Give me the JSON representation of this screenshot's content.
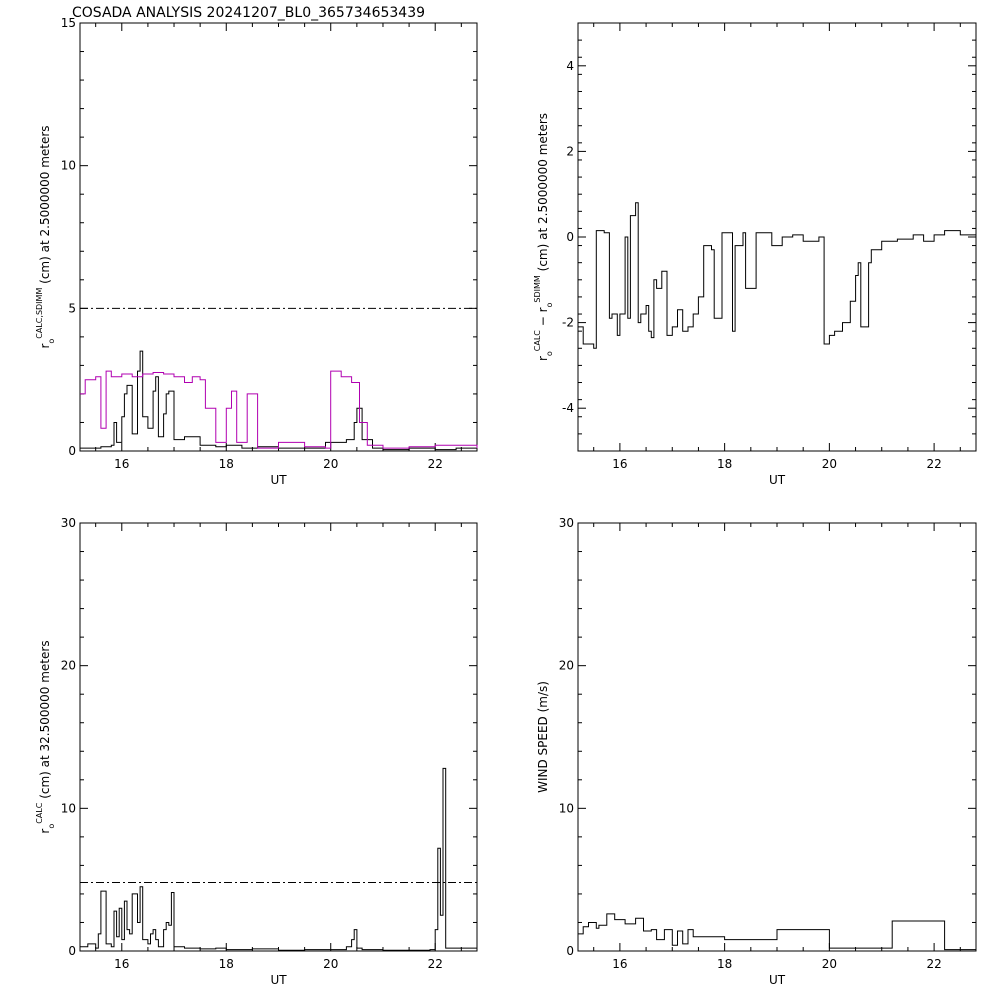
{
  "title": "COSADA ANALYSIS 20241207_BL0_365734653439",
  "colors": {
    "primary": "#000000",
    "sdimm": "#b000b0"
  },
  "chart_data": [
    {
      "type": "line",
      "xlabel": "UT",
      "ylabel": "r₀ CALC,SDIMM (cm) at 2.5000000 meters",
      "ylabel_parts": {
        "base": "r",
        "sup": "CALC,SDIMM",
        "sub": "o",
        "rest": "(cm)  at  2.5000000 meters"
      },
      "xlim": [
        15.2,
        22.8
      ],
      "ylim": [
        0,
        15
      ],
      "xticks": [
        16,
        18,
        20,
        22
      ],
      "yticks": [
        0,
        5,
        10,
        15
      ],
      "reference_lines": [
        5
      ],
      "series": [
        {
          "color": "#000000",
          "x": [
            15.2,
            15.4,
            15.6,
            15.8,
            15.85,
            15.9,
            16.0,
            16.05,
            16.1,
            16.2,
            16.3,
            16.35,
            16.4,
            16.5,
            16.6,
            16.65,
            16.7,
            16.8,
            16.85,
            16.9,
            17.0,
            17.2,
            17.5,
            17.8,
            18.0,
            18.3,
            18.6,
            19.0,
            19.5,
            19.9,
            20.1,
            20.3,
            20.45,
            20.5,
            20.6,
            20.8,
            21.0,
            21.5,
            22.0,
            22.4,
            22.8
          ],
          "y": [
            0.1,
            0.1,
            0.15,
            0.2,
            1.0,
            0.3,
            1.2,
            2.0,
            2.3,
            0.6,
            2.8,
            3.5,
            1.2,
            0.8,
            2.1,
            2.6,
            0.5,
            1.3,
            2.0,
            2.1,
            0.4,
            0.5,
            0.2,
            0.15,
            0.2,
            0.1,
            0.15,
            0.1,
            0.1,
            0.3,
            0.3,
            0.4,
            1.0,
            1.5,
            0.4,
            0.1,
            0.05,
            0.1,
            0.05,
            0.1,
            0.05
          ]
        },
        {
          "color": "#b000b0",
          "x": [
            15.2,
            15.3,
            15.5,
            15.6,
            15.7,
            15.8,
            16.0,
            16.2,
            16.4,
            16.6,
            16.8,
            17.0,
            17.2,
            17.35,
            17.5,
            17.6,
            17.8,
            18.0,
            18.1,
            18.2,
            18.4,
            18.6,
            19.0,
            19.5,
            19.9,
            20.0,
            20.2,
            20.4,
            20.55,
            20.7,
            21.0,
            21.5,
            22.0,
            22.8
          ],
          "y": [
            2.0,
            2.5,
            2.6,
            0.8,
            2.8,
            2.6,
            2.7,
            2.6,
            2.7,
            2.75,
            2.7,
            2.6,
            2.4,
            2.6,
            2.5,
            1.5,
            0.3,
            1.5,
            2.1,
            0.3,
            2.0,
            0.1,
            0.3,
            0.15,
            0.1,
            2.8,
            2.6,
            2.4,
            1.0,
            0.2,
            0.1,
            0.15,
            0.2,
            0.1
          ]
        }
      ]
    },
    {
      "type": "line",
      "xlabel": "UT",
      "ylabel": "r₀ CALC − r₀ SDIMM (cm) at 2.5000000 meters",
      "ylabel_parts": {
        "base": "r",
        "sup": "CALC",
        "sub": "o",
        "mid": " −  r",
        "sup2": "SDIMM",
        "sub2": "o",
        "rest": " (cm) at 2.5000000 meters"
      },
      "xlim": [
        15.2,
        22.8
      ],
      "ylim": [
        -5,
        5
      ],
      "xticks": [
        16,
        18,
        20,
        22
      ],
      "yticks": [
        -4,
        -2,
        0,
        2,
        4
      ],
      "series": [
        {
          "color": "#000000",
          "x": [
            15.2,
            15.3,
            15.5,
            15.55,
            15.7,
            15.8,
            15.85,
            15.95,
            16.0,
            16.1,
            16.15,
            16.2,
            16.3,
            16.35,
            16.4,
            16.5,
            16.55,
            16.6,
            16.65,
            16.7,
            16.8,
            16.9,
            17.0,
            17.1,
            17.2,
            17.3,
            17.4,
            17.5,
            17.6,
            17.75,
            17.8,
            17.95,
            18.05,
            18.15,
            18.2,
            18.35,
            18.4,
            18.6,
            18.9,
            19.1,
            19.3,
            19.5,
            19.8,
            19.9,
            20.0,
            20.1,
            20.25,
            20.4,
            20.5,
            20.55,
            20.6,
            20.75,
            20.8,
            21.0,
            21.3,
            21.6,
            21.8,
            22.0,
            22.2,
            22.5,
            22.8
          ],
          "y": [
            -2.1,
            -2.5,
            -2.6,
            0.15,
            0.1,
            -1.9,
            -1.8,
            -2.3,
            -1.8,
            0.0,
            -1.9,
            0.5,
            0.8,
            -2.0,
            -1.8,
            -1.6,
            -2.2,
            -2.35,
            -1.0,
            -1.2,
            -0.8,
            -2.3,
            -2.1,
            -1.7,
            -2.2,
            -2.1,
            -1.8,
            -1.4,
            -0.2,
            -0.3,
            -1.9,
            0.1,
            0.1,
            -2.2,
            -0.2,
            0.1,
            -1.2,
            0.1,
            -0.2,
            0.0,
            0.05,
            -0.1,
            0.0,
            -2.5,
            -2.3,
            -2.2,
            -2.0,
            -1.5,
            -0.9,
            -0.6,
            -2.1,
            -0.6,
            -0.3,
            -0.1,
            -0.05,
            0.05,
            -0.1,
            0.05,
            0.15,
            0.05,
            0.1
          ]
        }
      ]
    },
    {
      "type": "line",
      "xlabel": "UT",
      "ylabel": "r₀ CALC (cm) at 32.500000 meters",
      "ylabel_parts": {
        "base": "r",
        "sup": "CALC",
        "sub": "o",
        "rest": "(cm) at 32.500000 meters"
      },
      "xlim": [
        15.2,
        22.8
      ],
      "ylim": [
        0,
        30
      ],
      "xticks": [
        16,
        18,
        20,
        22
      ],
      "yticks": [
        0,
        10,
        20,
        30
      ],
      "reference_lines": [
        4.8
      ],
      "series": [
        {
          "color": "#000000",
          "x": [
            15.2,
            15.35,
            15.5,
            15.55,
            15.6,
            15.7,
            15.8,
            15.85,
            15.9,
            15.95,
            16.0,
            16.05,
            16.1,
            16.15,
            16.2,
            16.3,
            16.35,
            16.4,
            16.5,
            16.55,
            16.6,
            16.65,
            16.7,
            16.8,
            16.85,
            16.9,
            16.95,
            17.0,
            17.2,
            17.5,
            17.8,
            18.0,
            18.5,
            19.0,
            19.5,
            20.0,
            20.3,
            20.4,
            20.45,
            20.5,
            20.6,
            21.0,
            21.5,
            21.9,
            22.0,
            22.05,
            22.1,
            22.15,
            22.2,
            22.8
          ],
          "y": [
            0.3,
            0.5,
            0.2,
            1.2,
            4.2,
            0.5,
            0.3,
            2.8,
            1.0,
            3.0,
            0.8,
            3.5,
            1.5,
            1.2,
            4.0,
            2.0,
            4.5,
            0.8,
            0.5,
            1.2,
            1.5,
            0.8,
            0.3,
            1.5,
            2.0,
            1.8,
            4.1,
            0.3,
            0.2,
            0.15,
            0.2,
            0.1,
            0.15,
            0.05,
            0.1,
            0.1,
            0.3,
            0.8,
            1.5,
            0.2,
            0.1,
            0.05,
            0.05,
            0.1,
            1.5,
            7.2,
            2.5,
            12.8,
            0.2,
            0.1
          ]
        }
      ]
    },
    {
      "type": "line",
      "xlabel": "UT",
      "ylabel": "WIND SPEED (m/s)",
      "ylabel_parts": {
        "base": "WIND SPEED (m/s)"
      },
      "xlim": [
        15.2,
        22.8
      ],
      "ylim": [
        0,
        30
      ],
      "xticks": [
        16,
        18,
        20,
        22
      ],
      "yticks": [
        0,
        10,
        20,
        30
      ],
      "series": [
        {
          "color": "#000000",
          "x": [
            15.2,
            15.3,
            15.4,
            15.55,
            15.6,
            15.75,
            15.9,
            16.1,
            16.3,
            16.45,
            16.6,
            16.7,
            16.85,
            17.0,
            17.1,
            17.2,
            17.3,
            17.4,
            17.5,
            17.8,
            18.0,
            18.5,
            19.0,
            19.5,
            20.0,
            20.4,
            20.5,
            20.8,
            21.0,
            21.2,
            21.5,
            22.0,
            22.2,
            22.8
          ],
          "y": [
            1.2,
            1.7,
            2.0,
            1.6,
            1.8,
            2.6,
            2.2,
            1.9,
            2.3,
            1.4,
            1.5,
            0.8,
            1.5,
            0.4,
            1.4,
            0.5,
            1.5,
            1.0,
            1.0,
            1.0,
            0.8,
            0.8,
            1.5,
            1.5,
            0.2,
            0.2,
            0.2,
            0.2,
            0.2,
            2.1,
            2.1,
            2.1,
            0.1,
            0.1
          ]
        }
      ]
    }
  ]
}
